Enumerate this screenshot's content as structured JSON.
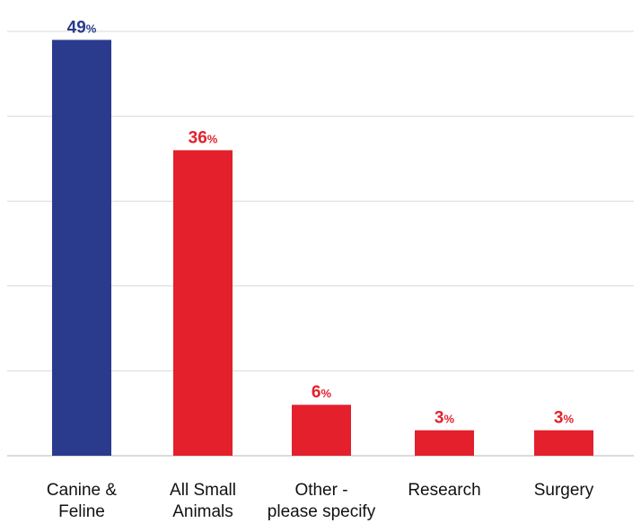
{
  "chart_data": {
    "type": "bar",
    "categories": [
      [
        "Canine &",
        "Feline"
      ],
      [
        "All Small",
        "Animals"
      ],
      [
        "Other -",
        "please specify"
      ],
      [
        "Research"
      ],
      [
        "Surgery"
      ]
    ],
    "values": [
      49,
      36,
      6,
      3,
      3
    ],
    "value_labels": [
      "49",
      "36",
      "6",
      "3",
      "3"
    ],
    "value_suffix": "%",
    "ylim": [
      0,
      50
    ],
    "grid": true,
    "colors": [
      "#2a3a8c",
      "#e3202c",
      "#e3202c",
      "#e3202c",
      "#e3202c"
    ],
    "title": "",
    "xlabel": "",
    "ylabel": ""
  }
}
